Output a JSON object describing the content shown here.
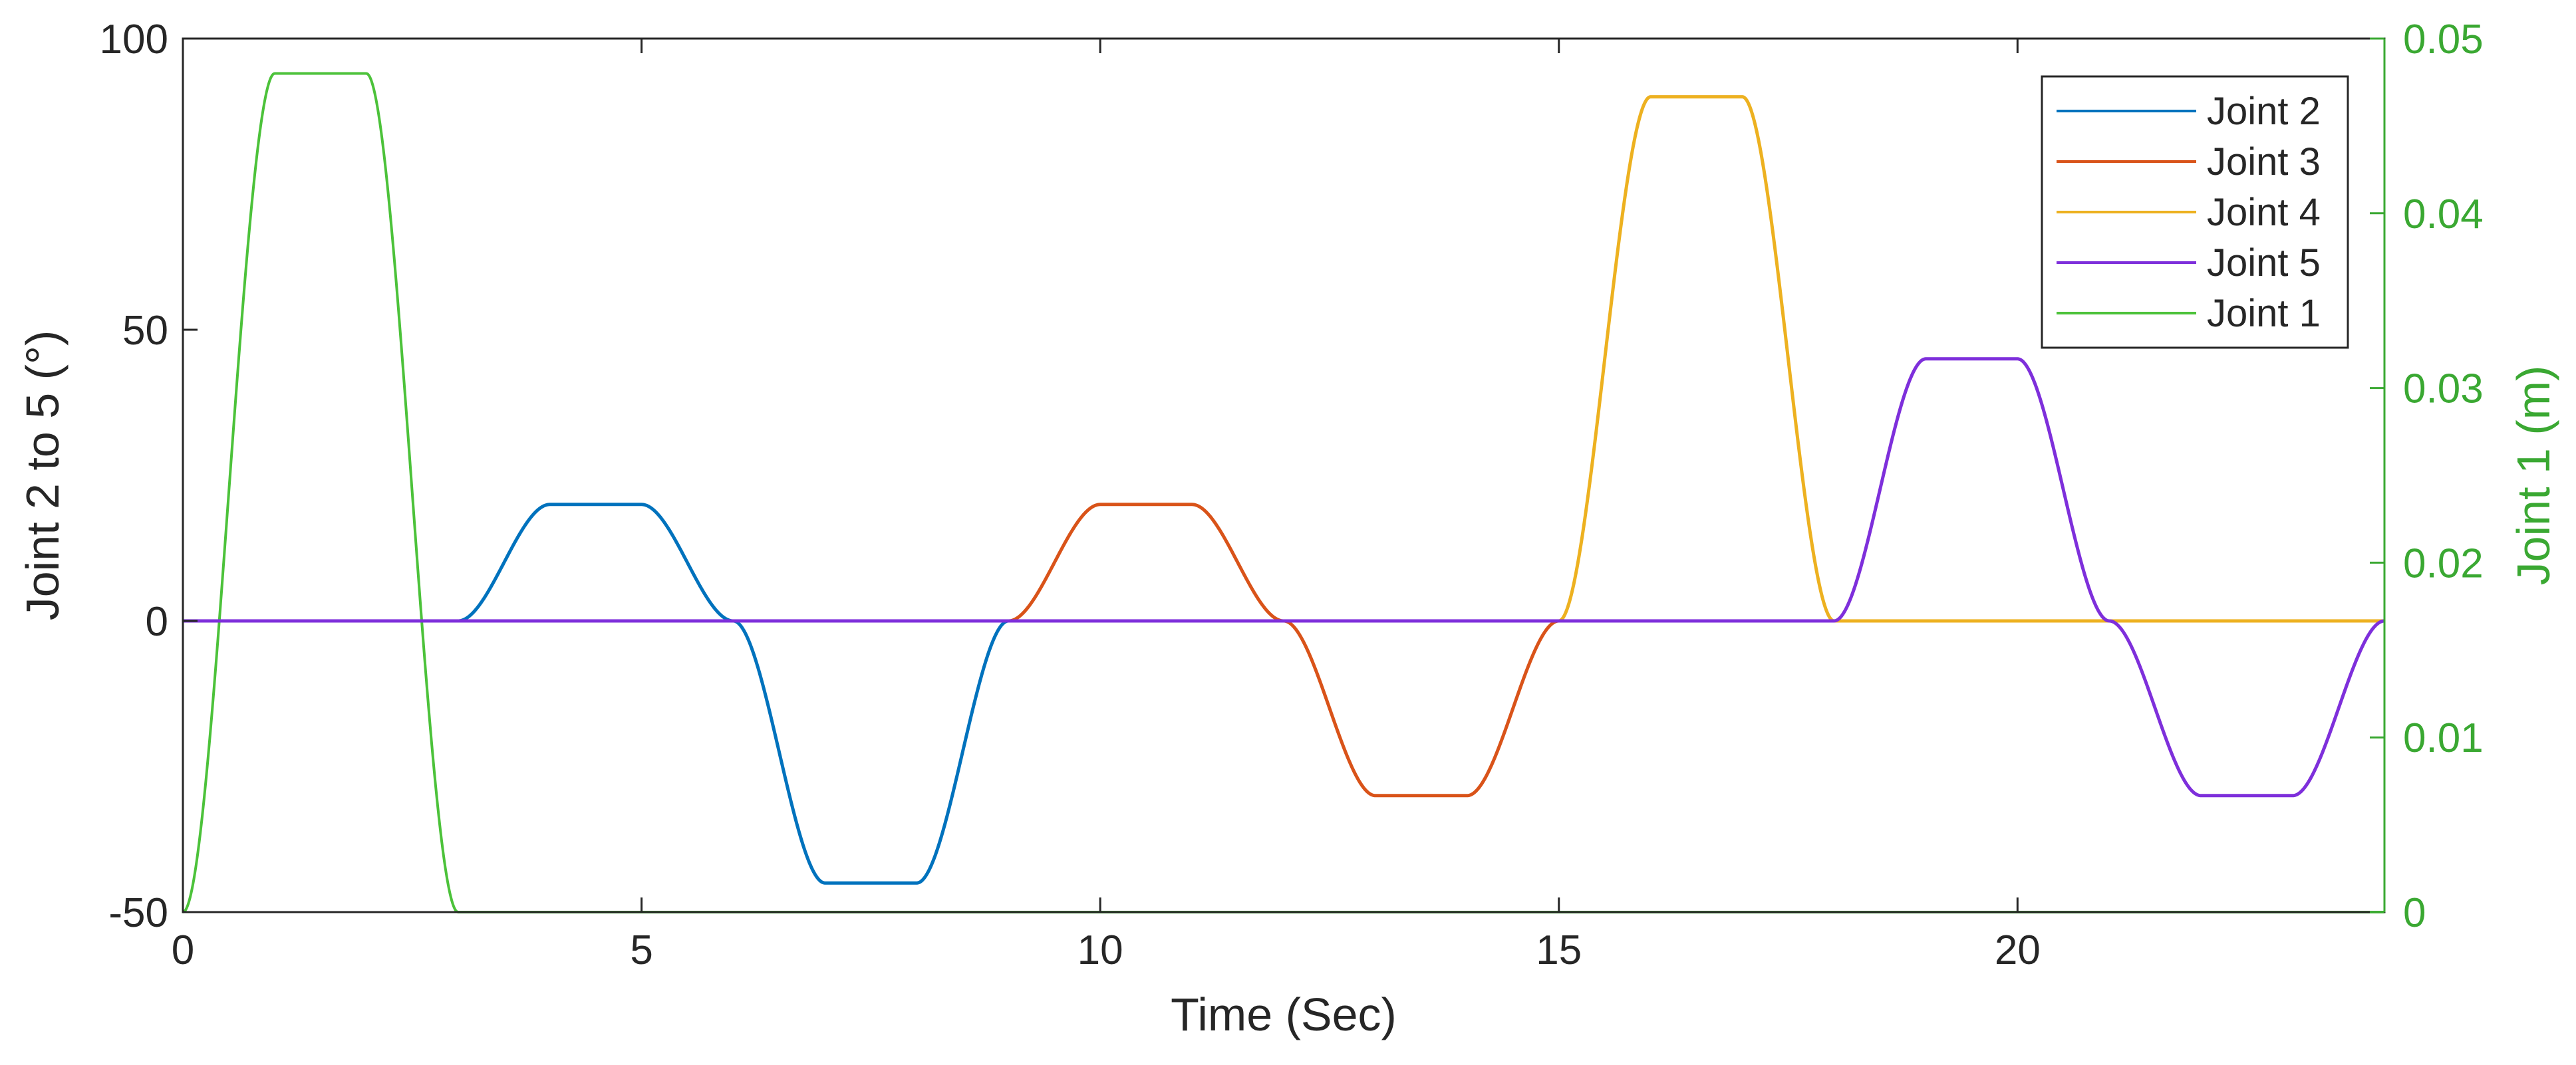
{
  "chart_data": {
    "type": "line",
    "xlabel": "Time (Sec)",
    "ylabel_left": "Joint 2 to 5 (°)",
    "ylabel_right": "Joint 1 (m)",
    "xlim": [
      0,
      24
    ],
    "ylim_left": [
      -50,
      100
    ],
    "ylim_right": [
      0,
      0.05
    ],
    "x_ticks": [
      0,
      5,
      10,
      15,
      20
    ],
    "y_left_ticks": [
      -50,
      0,
      50,
      100
    ],
    "y_right_ticks": [
      0,
      0.01,
      0.02,
      0.03,
      0.04,
      0.05
    ],
    "grid": false,
    "legend": "top-right",
    "colors": {
      "axis": "#262626",
      "right_axis": "#3aa832"
    },
    "series": [
      {
        "name": "Joint 2",
        "axis": "left",
        "color": "#0072bd",
        "moves": [
          {
            "t0": 3,
            "t1": 4,
            "v0": 0,
            "v1": 20
          },
          {
            "t0": 5,
            "t1": 6,
            "v0": 20,
            "v1": 0
          },
          {
            "t0": 6,
            "t1": 7,
            "v0": 0,
            "v1": -45
          },
          {
            "t0": 8,
            "t1": 9,
            "v0": -45,
            "v1": 0
          }
        ]
      },
      {
        "name": "Joint 3",
        "axis": "left",
        "color": "#d95319",
        "moves": [
          {
            "t0": 9,
            "t1": 10,
            "v0": 0,
            "v1": 20
          },
          {
            "t0": 11,
            "t1": 12,
            "v0": 20,
            "v1": 0
          },
          {
            "t0": 12,
            "t1": 13,
            "v0": 0,
            "v1": -30
          },
          {
            "t0": 14,
            "t1": 15,
            "v0": -30,
            "v1": 0
          }
        ]
      },
      {
        "name": "Joint 4",
        "axis": "left",
        "color": "#edb120",
        "moves": [
          {
            "t0": 15,
            "t1": 16,
            "v0": 0,
            "v1": 90
          },
          {
            "t0": 17,
            "t1": 18,
            "v0": 90,
            "v1": 0
          }
        ]
      },
      {
        "name": "Joint 5",
        "axis": "left",
        "color": "#7e2fdb",
        "moves": [
          {
            "t0": 18,
            "t1": 19,
            "v0": 0,
            "v1": 45
          },
          {
            "t0": 20,
            "t1": 21,
            "v0": 45,
            "v1": 0
          },
          {
            "t0": 21,
            "t1": 22,
            "v0": 0,
            "v1": -30
          },
          {
            "t0": 23,
            "t1": 24,
            "v0": -30,
            "v1": 0
          }
        ]
      },
      {
        "name": "Joint 1",
        "axis": "right",
        "color": "#4cc23a",
        "moves": [
          {
            "t0": 0,
            "t1": 1,
            "v0": 0,
            "v1": 0.048
          },
          {
            "t0": 2,
            "t1": 3,
            "v0": 0.048,
            "v1": 0
          }
        ]
      }
    ]
  }
}
